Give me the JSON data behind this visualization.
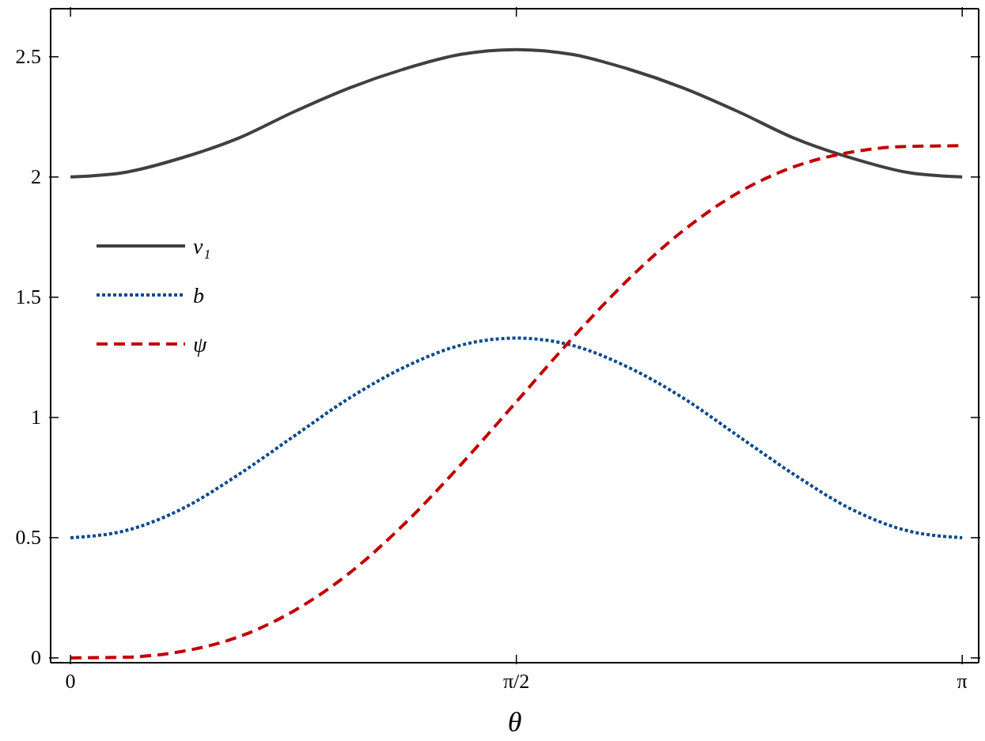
{
  "chart_data": {
    "type": "line",
    "xlabel": "θ",
    "x": [
      0,
      0.196,
      0.393,
      0.589,
      0.785,
      0.982,
      1.178,
      1.374,
      1.571,
      1.767,
      1.963,
      2.16,
      2.356,
      2.553,
      2.749,
      2.945,
      3.142
    ],
    "series": [
      {
        "name": "v₁",
        "color": "#404040",
        "line_style": "solid",
        "values": [
          2,
          2.02,
          2.08,
          2.16,
          2.27,
          2.37,
          2.45,
          2.51,
          2.53,
          2.51,
          2.45,
          2.37,
          2.27,
          2.16,
          2.08,
          2.02,
          2
        ]
      },
      {
        "name": "b",
        "color": "#0a4a8c",
        "line_style": "dotted",
        "values": [
          0.5,
          0.53,
          0.62,
          0.76,
          0.92,
          1.08,
          1.21,
          1.3,
          1.33,
          1.3,
          1.21,
          1.08,
          0.92,
          0.76,
          0.62,
          0.53,
          0.5
        ]
      },
      {
        "name": "ψ",
        "color": "#c00000",
        "line_style": "dashed",
        "values": [
          0,
          0.003,
          0.027,
          0.086,
          0.194,
          0.352,
          0.559,
          0.802,
          1.065,
          1.328,
          1.571,
          1.778,
          1.937,
          2.044,
          2.103,
          2.127,
          2.13
        ]
      }
    ],
    "xlim": [
      -0.07,
      3.2
    ],
    "ylim": [
      -0.02,
      2.7
    ],
    "xticks": [
      {
        "value": 0,
        "label": "0"
      },
      {
        "value": 1.571,
        "label": "π/2"
      },
      {
        "value": 3.142,
        "label": "π"
      }
    ],
    "yticks": [
      0,
      0.5,
      1,
      1.5,
      2,
      2.5
    ],
    "grid": false,
    "legend": "top left",
    "marker": "none"
  }
}
